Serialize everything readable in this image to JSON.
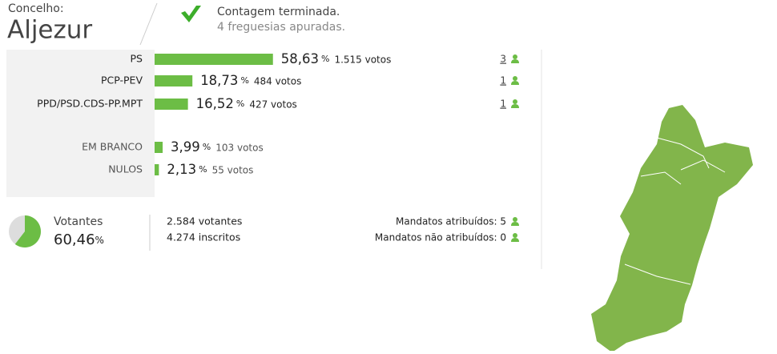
{
  "header": {
    "label": "Concelho:",
    "name": "Aljezur",
    "status": "Contagem terminada.",
    "detail": "4 freguesias apuradas."
  },
  "percent_sign": "%",
  "rows": [
    {
      "party": "PS",
      "pct": {
        "value": 58.63,
        "label": "58,63"
      },
      "votes": "1.515 votos",
      "mandates": 3
    },
    {
      "party": "PCP-PEV",
      "pct": {
        "value": 18.73,
        "label": "18,73"
      },
      "votes": "484 votos",
      "mandates": 1
    },
    {
      "party": "PPD/PSD.CDS-PP.MPT",
      "pct": {
        "value": 16.52,
        "label": "16,52"
      },
      "votes": "427 votos",
      "mandates": 1
    },
    {
      "party": "EM BRANCO",
      "pct": {
        "value": 3.99,
        "label": "3,99"
      },
      "votes": "103 votos"
    },
    {
      "party": "NULOS",
      "pct": {
        "value": 2.13,
        "label": "2,13"
      },
      "votes": "55 votos"
    }
  ],
  "turnout": {
    "label": "Votantes",
    "pct": {
      "value": 60.46,
      "label": "60,46"
    },
    "voters": "2.584 votantes",
    "registered": "4.274 inscritos"
  },
  "seats": {
    "assigned": "Mandatos atribuídos: 5",
    "unassigned": "Mandatos não atribuídos: 0"
  }
}
